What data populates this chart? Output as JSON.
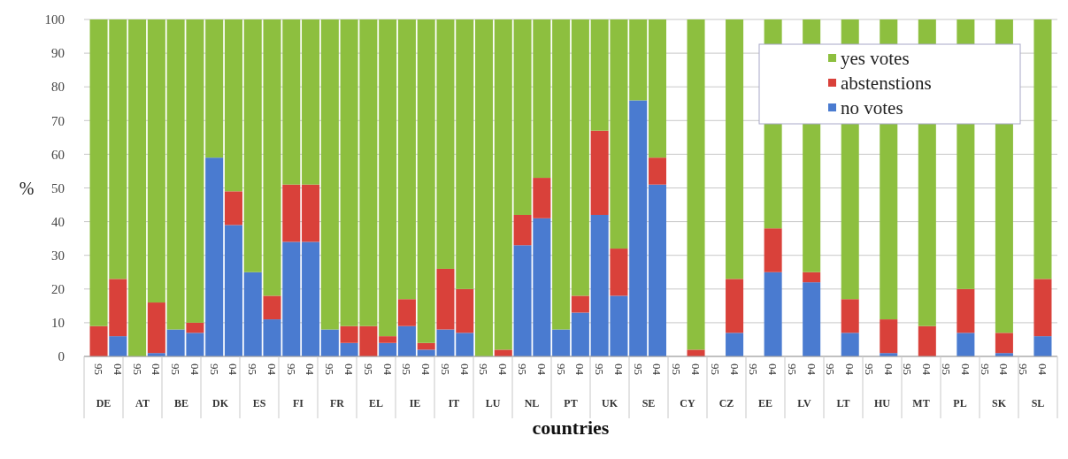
{
  "chart_data": {
    "type": "bar",
    "stacked": true,
    "xlabel": "countries",
    "ylabel": "%",
    "categories": [
      "95",
      "04",
      "95",
      "04",
      "95",
      "04",
      "95",
      "04",
      "95",
      "04",
      "95",
      "04",
      "95",
      "04",
      "95",
      "04",
      "95",
      "04",
      "95",
      "04",
      "95",
      "04",
      "95",
      "04",
      "95",
      "04",
      "95",
      "04",
      "95",
      "04",
      "95",
      "04",
      "95",
      "04",
      "95",
      "04",
      "95",
      "04",
      "95",
      "04",
      "95",
      "04",
      "95",
      "04",
      "95",
      "04",
      "95",
      "04",
      "95",
      "04"
    ],
    "annotations": [
      "DE",
      "AT",
      "BE",
      "DK",
      "ES",
      "FI",
      "FR",
      "EL",
      "IE",
      "IT",
      "LU",
      "NL",
      "PT",
      "UK",
      "SE",
      "CY",
      "CZ",
      "EE",
      "LV",
      "LT",
      "HU",
      "MT",
      "PL",
      "SK",
      "SL"
    ],
    "series": [
      {
        "name": "no votes",
        "color": "#4a7bd0",
        "values": [
          0,
          6,
          0,
          1,
          8,
          7,
          59,
          39,
          25,
          11,
          34,
          34,
          8,
          4,
          0,
          4,
          9,
          2,
          8,
          7,
          0,
          0,
          33,
          41,
          8,
          13,
          42,
          18,
          76,
          51,
          null,
          0,
          null,
          7,
          null,
          25,
          null,
          22,
          null,
          7,
          null,
          1,
          null,
          0,
          null,
          7,
          null,
          1,
          null,
          6
        ]
      },
      {
        "name": "abstenstions",
        "color": "#d9413a",
        "values": [
          9,
          17,
          0,
          15,
          0,
          3,
          0,
          10,
          0,
          7,
          17,
          17,
          0,
          5,
          9,
          2,
          8,
          2,
          18,
          13,
          0,
          2,
          9,
          12,
          0,
          5,
          25,
          14,
          0,
          8,
          null,
          2,
          null,
          16,
          null,
          13,
          null,
          3,
          null,
          10,
          null,
          10,
          null,
          9,
          null,
          13,
          null,
          6,
          null,
          17
        ]
      },
      {
        "name": "yes votes",
        "color": "#8dbf3f",
        "values": [
          91,
          77,
          100,
          84,
          92,
          90,
          41,
          51,
          75,
          82,
          49,
          49,
          92,
          91,
          91,
          94,
          83,
          96,
          74,
          80,
          100,
          98,
          58,
          47,
          92,
          82,
          33,
          68,
          24,
          41,
          null,
          98,
          null,
          77,
          null,
          62,
          null,
          75,
          null,
          83,
          null,
          89,
          null,
          91,
          null,
          80,
          null,
          93,
          null,
          77
        ]
      }
    ],
    "ylim": [
      0,
      100
    ],
    "yticks": [
      0,
      10,
      20,
      30,
      40,
      50,
      60,
      70,
      80,
      90,
      100
    ],
    "grid": "y",
    "legend": "top right"
  }
}
